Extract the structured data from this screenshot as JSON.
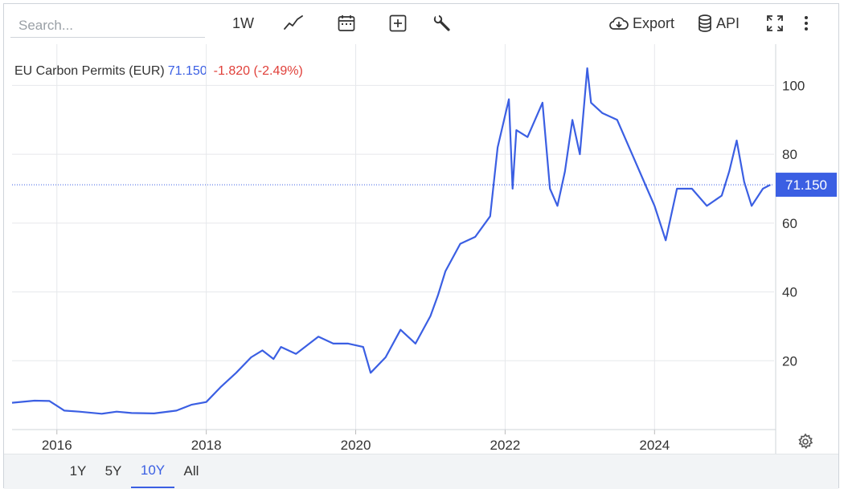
{
  "toolbar": {
    "search_placeholder": "Search...",
    "interval_label": "1W",
    "export_label": "Export",
    "api_label": "API"
  },
  "legend": {
    "name": "EU Carbon Permits (EUR)",
    "value": "71.150",
    "change": "-1.820 (-2.49%)"
  },
  "ranges": [
    {
      "label": "1Y",
      "active": false
    },
    {
      "label": "5Y",
      "active": false
    },
    {
      "label": "10Y",
      "active": true
    },
    {
      "label": "All",
      "active": false
    }
  ],
  "colors": {
    "line": "#3b5fe3",
    "down": "#e0403a",
    "grid": "#e6e8eb"
  },
  "chart_data": {
    "type": "line",
    "title": "EU Carbon Permits (EUR)",
    "xlabel": "",
    "ylabel": "",
    "xlim": [
      2015.4,
      2025.6
    ],
    "ylim": [
      0,
      112
    ],
    "x_ticks": [
      "2016",
      "2018",
      "2020",
      "2022",
      "2024"
    ],
    "y_ticks": [
      20,
      40,
      60,
      80,
      100
    ],
    "last_value_label": "71.150",
    "grid": true,
    "series": [
      {
        "name": "EU Carbon Permits",
        "x": [
          2015.4,
          2015.7,
          2015.9,
          2016.1,
          2016.3,
          2016.6,
          2016.8,
          2017.0,
          2017.3,
          2017.6,
          2017.8,
          2018.0,
          2018.2,
          2018.4,
          2018.6,
          2018.75,
          2018.9,
          2019.0,
          2019.2,
          2019.5,
          2019.7,
          2019.9,
          2020.1,
          2020.2,
          2020.4,
          2020.6,
          2020.8,
          2021.0,
          2021.1,
          2021.2,
          2021.4,
          2021.6,
          2021.8,
          2021.9,
          2022.05,
          2022.1,
          2022.15,
          2022.3,
          2022.5,
          2022.6,
          2022.7,
          2022.8,
          2022.9,
          2023.0,
          2023.1,
          2023.15,
          2023.3,
          2023.5,
          2023.7,
          2023.9,
          2024.0,
          2024.15,
          2024.3,
          2024.5,
          2024.7,
          2024.9,
          2025.0,
          2025.1,
          2025.2,
          2025.3,
          2025.45,
          2025.55
        ],
        "y": [
          7.8,
          8.4,
          8.3,
          5.5,
          5.2,
          4.6,
          5.2,
          4.8,
          4.7,
          5.5,
          7.2,
          8.0,
          12.5,
          16.5,
          21.0,
          23.0,
          20.5,
          24.0,
          22.0,
          27.0,
          25.0,
          25.0,
          24.0,
          16.5,
          21.0,
          29.0,
          25.0,
          33.0,
          39.0,
          46.0,
          54.0,
          56.0,
          62.0,
          82.0,
          96.0,
          70.0,
          87.0,
          85.0,
          95.0,
          70.0,
          65.0,
          75.0,
          90.0,
          80.0,
          105.0,
          95.0,
          92.0,
          90.0,
          80.0,
          70.0,
          65.0,
          55.0,
          70.0,
          70.0,
          65.0,
          68.0,
          75.0,
          84.0,
          72.0,
          65.0,
          70.0,
          71.15
        ]
      }
    ]
  }
}
